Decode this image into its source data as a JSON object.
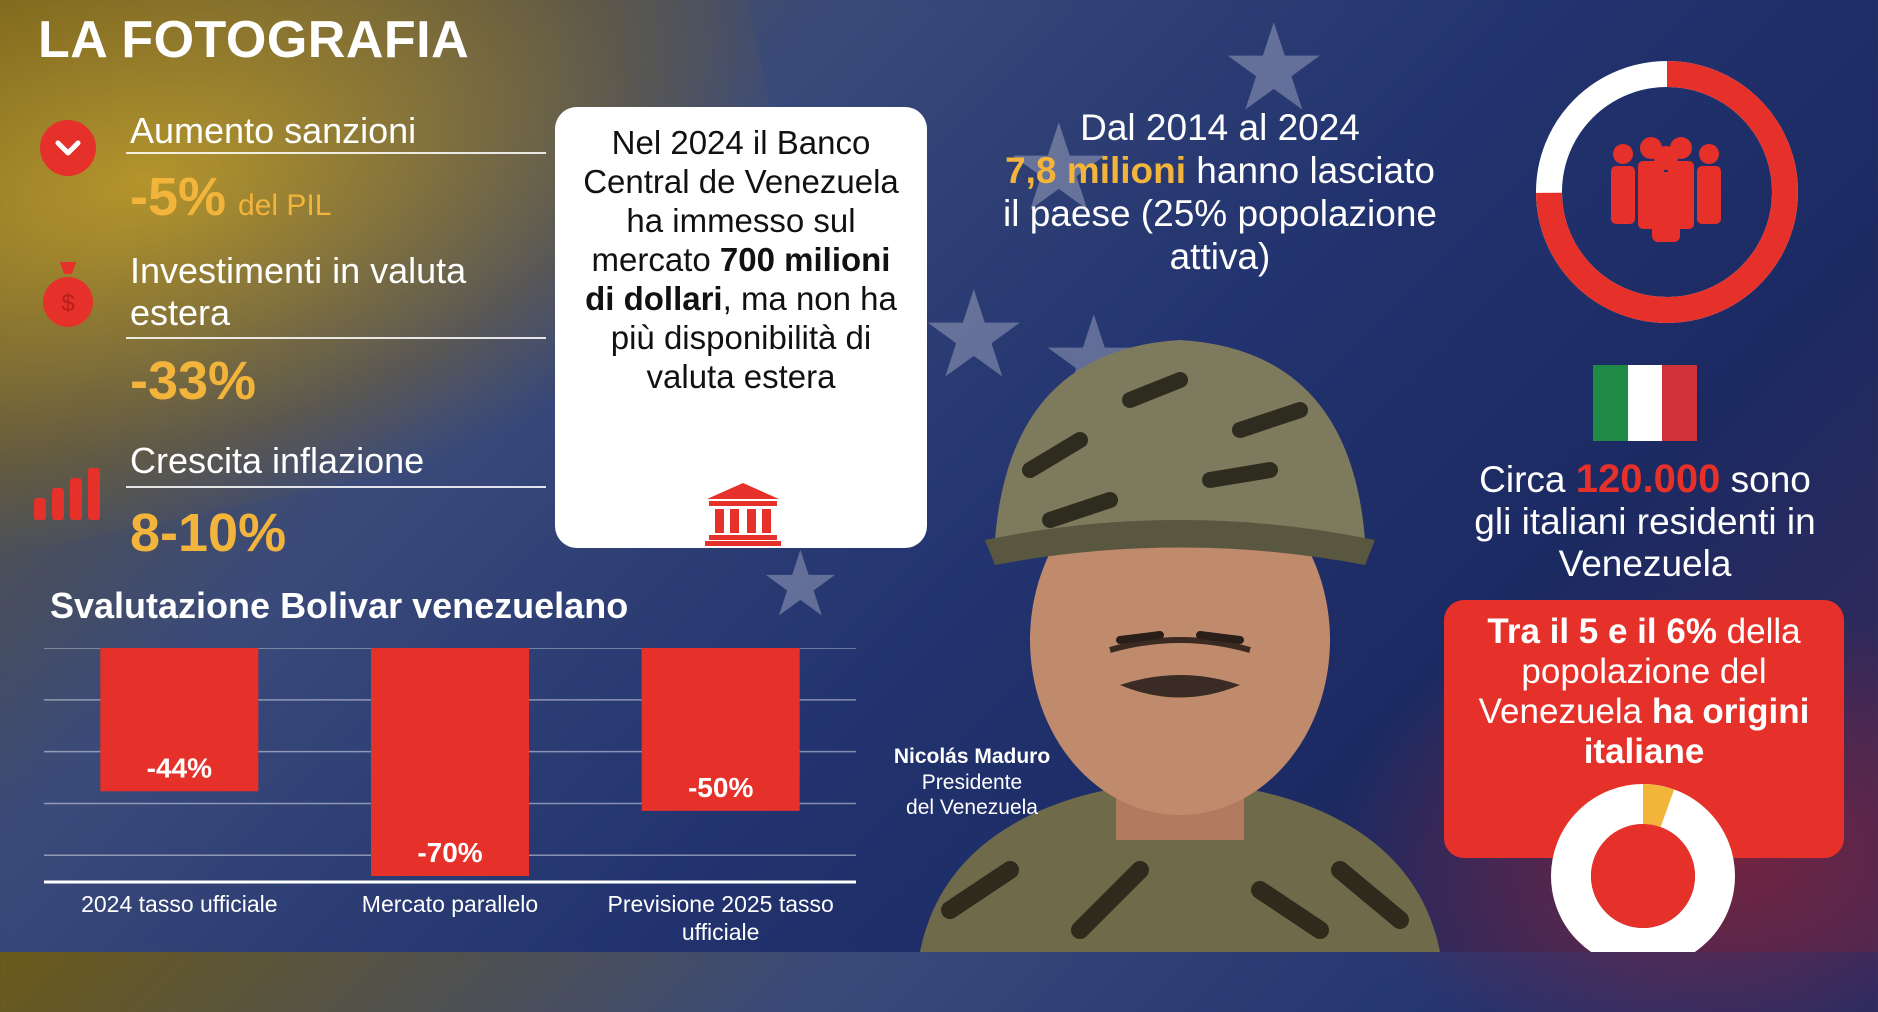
{
  "page": {
    "title": "LA FOTOGRAFIA"
  },
  "kpis": [
    {
      "icon": "chevron-down-icon",
      "label": "Aumento sanzioni",
      "value": "-5%",
      "unit": "del PIL"
    },
    {
      "icon": "money-bag-icon",
      "label_line1": "Investimenti in valuta",
      "label_line2": "estera",
      "value": "-33%"
    },
    {
      "icon": "bar-chart-icon",
      "label": "Crescita inflazione",
      "value": "8-10%"
    }
  ],
  "bank_card": {
    "text_before": "Nel 2024 il Banco Central de Venezuela ha immesso sul mercato ",
    "text_bold": "700 milioni di dollari",
    "text_after": ", ma non ha più disponibilità di valuta estera",
    "icon": "bank-icon"
  },
  "emigration": {
    "line1": "Dal 2014 al 2024",
    "highlight": "7,8 milioni",
    "line2_rest": " hanno lasciato",
    "line3": "il paese (25% popolazione",
    "line4": "attiva)",
    "icon": "people-icon"
  },
  "italians": {
    "prefix": "Circa ",
    "number": "120.000",
    "suffix": " sono",
    "line2": "gli italiani residenti in",
    "line3": "Venezuela",
    "flag_colors": [
      "#1e8a45",
      "#ffffff",
      "#d0323c"
    ]
  },
  "origins_card": {
    "bold1": "Tra il 5 e il 6%",
    "text1": " della",
    "text2": "popolazione del",
    "text3": "Venezuela ",
    "bold2": "ha origini",
    "bold3": "italiane",
    "share": 0.055
  },
  "person": {
    "name": "Nicolás Maduro",
    "role_line1": "Presidente",
    "role_line2": "del Venezuela"
  },
  "colors": {
    "accent_red": "#e5312a",
    "accent_gold": "#f3b43b"
  },
  "chart_data": {
    "type": "bar",
    "title": "Svalutazione Bolivar venezuelano",
    "categories": [
      "2024 tasso ufficiale",
      "Mercato parallelo",
      "Previsione 2025 tasso ufficiale"
    ],
    "category_lines": [
      [
        "2024 tasso ufficiale"
      ],
      [
        "Mercato parallelo"
      ],
      [
        "Previsione 2025 tasso",
        "ufficiale"
      ]
    ],
    "values": [
      -44,
      -70,
      -50
    ],
    "labels": [
      "-44%",
      "-70%",
      "-50%"
    ],
    "ylim": [
      -70,
      0
    ],
    "grid": true,
    "color": "#e5312a"
  }
}
